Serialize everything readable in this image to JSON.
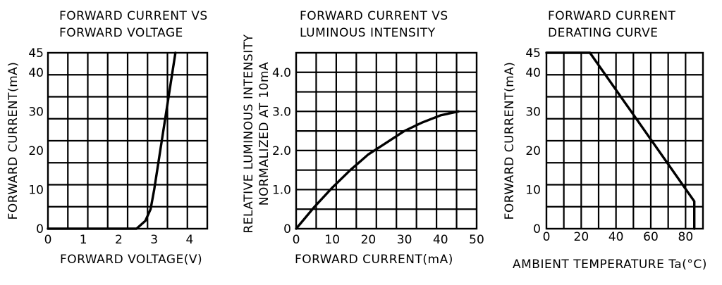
{
  "chart_data": [
    {
      "type": "line",
      "title_lines": [
        "FORWARD CURRENT VS",
        "FORWARD VOLTAGE"
      ],
      "xlabel": "FORWARD VOLTAGE(V)",
      "ylabel_lines": [
        "FORWARD CURRENT(mA)"
      ],
      "xlim": [
        0,
        4.5
      ],
      "ylim": [
        0,
        45
      ],
      "xticks": [
        0,
        1,
        2,
        3,
        4
      ],
      "yticks": [
        0,
        10,
        20,
        30,
        40,
        45
      ],
      "grid": true,
      "series": [
        {
          "x": [
            0,
            2.5,
            2.75,
            2.9,
            3.0,
            3.6
          ],
          "y": [
            0,
            0,
            2,
            5,
            10,
            45
          ]
        }
      ]
    },
    {
      "type": "line",
      "title_lines": [
        "FORWARD CURRENT VS",
        "LUMINOUS INTENSITY"
      ],
      "xlabel": "FORWARD CURRENT(mA)",
      "ylabel_lines": [
        "RELATIVE LUMINOUS INTENSITY",
        "NORMALIZED AT 10mA"
      ],
      "xlim": [
        0,
        50
      ],
      "ylim": [
        0,
        4.5
      ],
      "xticks": [
        0,
        10,
        20,
        30,
        40,
        50
      ],
      "yticks": [
        0,
        1.0,
        2.0,
        3.0,
        4.0
      ],
      "ytick_labels": [
        "0",
        "1.0",
        "2.0",
        "3.0",
        "4.0"
      ],
      "grid": true,
      "series": [
        {
          "x": [
            0,
            5,
            10,
            15,
            20,
            25,
            30,
            35,
            40,
            45
          ],
          "y": [
            0,
            0.55,
            1.05,
            1.5,
            1.9,
            2.2,
            2.5,
            2.72,
            2.9,
            3.0
          ]
        }
      ]
    },
    {
      "type": "line",
      "title_lines": [
        "FORWARD CURRENT",
        "DERATING CURVE"
      ],
      "xlabel": "AMBIENT TEMPERATURE Ta(°C)",
      "ylabel_lines": [
        "FORWARD CURRENT(mA)"
      ],
      "xlim": [
        0,
        90
      ],
      "ylim": [
        0,
        45
      ],
      "xticks": [
        0,
        20,
        40,
        60,
        80
      ],
      "yticks": [
        0,
        10,
        20,
        30,
        40,
        45
      ],
      "grid": true,
      "series": [
        {
          "x": [
            0,
            25,
            85,
            85
          ],
          "y": [
            45,
            45,
            7,
            0
          ]
        }
      ]
    }
  ]
}
